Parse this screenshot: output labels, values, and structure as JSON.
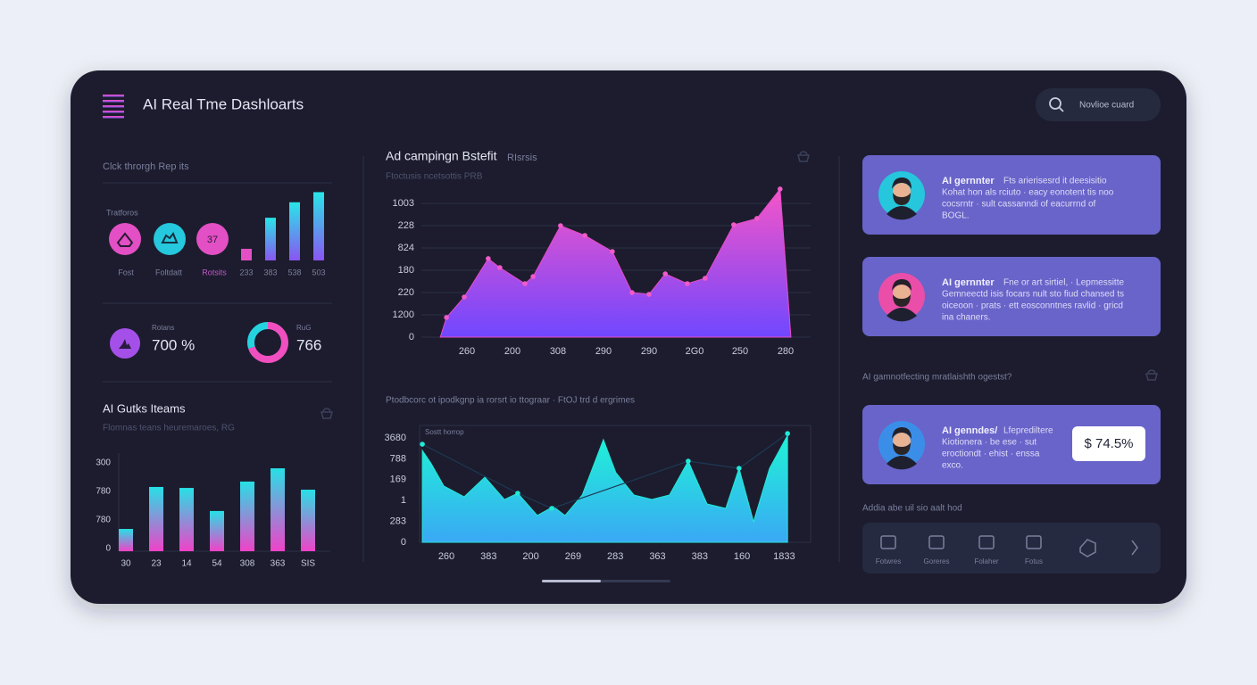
{
  "header": {
    "title": "AI Real Tme Dashloarts",
    "search_placeholder": "Novlioe cuard"
  },
  "left": {
    "click_title": "Clck throrgh Rep its",
    "traffic_label": "Tratforos",
    "icons": [
      {
        "label": "Fost"
      },
      {
        "label": "Foltdatt"
      },
      {
        "label": "Rotsits",
        "text": "37"
      }
    ],
    "mini_bars": {
      "labels": [
        "233",
        "383",
        "538",
        "503"
      ],
      "values": [
        15,
        55,
        75,
        88
      ],
      "ylim": [
        0,
        100
      ]
    },
    "stat1": {
      "label": "Rotans",
      "value": "700 %"
    },
    "stat2": {
      "label": "RuG",
      "value": "766",
      "donut": [
        70,
        30
      ]
    },
    "items_chart": {
      "title": "AI Gutks Iteams",
      "subtitle": "Flomnas teans heuremaroes, RG",
      "y_labels": [
        "300",
        "780",
        "780",
        "0"
      ],
      "categories": [
        "30",
        "23",
        "14",
        "54",
        "308",
        "363",
        "SIS"
      ],
      "values": [
        22.7,
        65.5,
        64.5,
        41,
        71,
        84.5,
        62.7
      ],
      "ylim": [
        0,
        100
      ]
    }
  },
  "middle": {
    "chart1": {
      "title": "Ad campingn Bstefit",
      "title_suffix": "RIsrsis",
      "subtitle": "Ftoctusis ncetsottis PRB",
      "y_labels": [
        "1003",
        "228",
        "824",
        "180",
        "220",
        "1200",
        "0"
      ],
      "x_labels": [
        "260",
        "200",
        "308",
        "290",
        "290",
        "2G0",
        "250",
        "280"
      ],
      "xlim": [
        0,
        100
      ],
      "ylim": [
        0,
        100
      ],
      "x": [
        4.2,
        5.8,
        10.4,
        16.6,
        19.6,
        26.1,
        28.2,
        35.3,
        41.6,
        48.7,
        53.8,
        58.2,
        62.4,
        68.1,
        72.7,
        80.1,
        86.1,
        92.1,
        94.9
      ],
      "values": [
        0,
        14.7,
        30,
        58.7,
        52,
        40,
        45.3,
        83.3,
        76,
        64,
        33.3,
        32,
        47.3,
        40,
        44,
        84,
        88.7,
        110.7,
        0
      ]
    },
    "chart2": {
      "title": "Ptodbcorc ot ipodkgnp ia rorsrt io ttograar · FtOJ trd d ergrimes",
      "legend_label": "Sostt horrop",
      "y_labels": [
        "3680",
        "788",
        "169",
        "1",
        "283",
        "0"
      ],
      "x_labels": [
        "260",
        "383",
        "200",
        "269",
        "283",
        "363",
        "383",
        "160",
        "1833"
      ],
      "xlim": [
        0,
        100
      ],
      "ylim": [
        0,
        100
      ],
      "series": [
        {
          "x": [
            0.7,
            3.0,
            6.2,
            11.4,
            16.7,
            21.7,
            25.1,
            30.1,
            34.2,
            37.2,
            41.6,
            47.0,
            50.2,
            54.8,
            59.4,
            63.9,
            68.7,
            73.5,
            78.3,
            81.7,
            85.4,
            89.5,
            94.1
          ],
          "values": [
            79.2,
            67.7,
            48.5,
            39.2,
            56.2,
            36.9,
            42.3,
            23.1,
            30.8,
            23.1,
            40.8,
            88.5,
            60,
            40.8,
            36.9,
            40.8,
            70,
            33.1,
            29.2,
            63.8,
            17.7,
            63.8,
            92.3
          ]
        },
        {
          "x": [
            0.7,
            25.1,
            33.8,
            68.7,
            81.7,
            94.1
          ],
          "values": [
            84.6,
            42.3,
            29.2,
            70,
            63.8,
            93.8
          ]
        }
      ]
    }
  },
  "right": {
    "cards": [
      {
        "title": "AI gernnter",
        "lines": [
          "Fts arierisesrd  it  deesisitio",
          "Kohat hon als rciuto · eacy  eonotent  tis  noo",
          "cocsrntr · sult  cassanndi  of  eacurrnd  of",
          "BOGL."
        ]
      },
      {
        "title": "AI gernnter",
        "lines": [
          "Fne or art sirtiel, · Lepmessitte",
          "Gemneectd isis focars  nult  sto  fiud  chansed  ts",
          "oiceoon · prats · ett  eosconntnes ravlid · gricd",
          "ina chaners."
        ]
      },
      {
        "title": "AI genndes/",
        "lines": [
          "Lfeprediltere",
          "Kiotionera · be ese · sut",
          "eroctiondt · ehist · enssa",
          "exco."
        ],
        "badge": "$ 74.5%"
      }
    ],
    "question": "AI gamnotfecting mratlaishth ogestst?",
    "toolbar_title": "Addia abe uil sio aalt hod",
    "tools": [
      "Fotwres",
      "Goreres",
      "Folaher",
      "Fotus"
    ]
  }
}
